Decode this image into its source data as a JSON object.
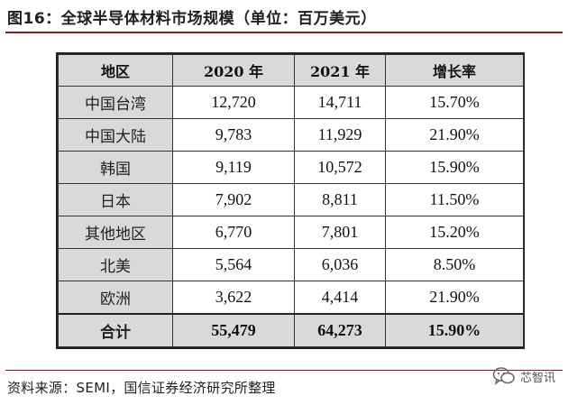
{
  "figure": {
    "title": "图16：全球半导体材料市场规模（单位：百万美元）",
    "source": "资料来源：SEMI，国信证券经济研究所整理",
    "watermark": "芯智讯"
  },
  "table": {
    "headers": [
      "地区",
      "2020 年",
      "2021 年",
      "增长率"
    ],
    "rows": [
      [
        "中国台湾",
        "12,720",
        "14,711",
        "15.70%"
      ],
      [
        "中国大陆",
        "9,783",
        "11,929",
        "21.90%"
      ],
      [
        "韩国",
        "9,119",
        "10,572",
        "15.90%"
      ],
      [
        "日本",
        "7,902",
        "8,811",
        "11.50%"
      ],
      [
        "其他地区",
        "6,770",
        "7,801",
        "15.20%"
      ],
      [
        "北美",
        "5,564",
        "6,036",
        "8.50%"
      ],
      [
        "欧洲",
        "3,622",
        "4,414",
        "21.90%"
      ]
    ],
    "total": [
      "合计",
      "55,479",
      "64,273",
      "15.90%"
    ]
  },
  "colors": {
    "header_fill": "#d9d9d9",
    "rule": "#8a1a1a",
    "border": "#222222"
  },
  "icons": {
    "watermark": "wechat-icon"
  }
}
